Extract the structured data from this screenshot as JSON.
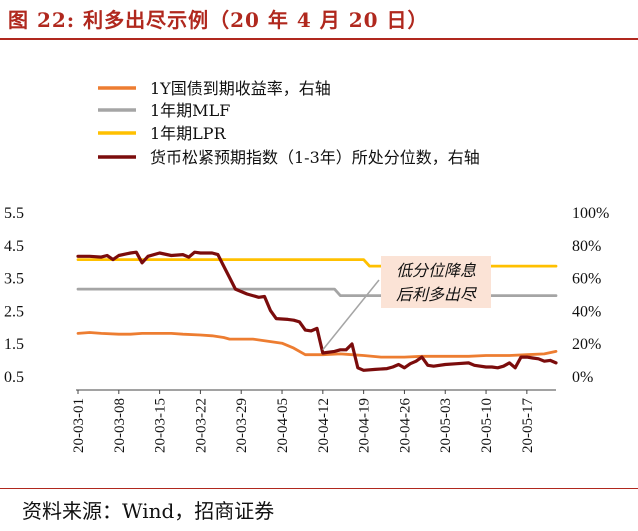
{
  "header": {
    "title": "图 22:  利多出尽示例（20 年 4 月 20 日）"
  },
  "footer": {
    "source": "资料来源：Wind，招商证券"
  },
  "chart_data": {
    "type": "line",
    "title": "",
    "ylim": [
      0.5,
      5.5
    ],
    "y_ticks": [
      "5.5",
      "4.5",
      "3.5",
      "2.5",
      "1.5",
      "0.5"
    ],
    "y2lim": [
      0,
      100
    ],
    "y2_ticks": [
      "100%",
      "80%",
      "60%",
      "40%",
      "20%",
      "0%"
    ],
    "x_ticks": [
      "20-03-01",
      "20-03-08",
      "20-03-15",
      "20-03-22",
      "20-03-29",
      "20-04-05",
      "20-04-12",
      "20-04-19",
      "20-04-26",
      "20-05-03",
      "20-05-10",
      "20-05-17"
    ],
    "x_range": [
      "2020-03-01",
      "2020-05-22"
    ],
    "legend_position": "top",
    "grid": false,
    "series": [
      {
        "name": "1Y国债到期收益率，右轴",
        "axis": "right",
        "color": "#ed7d31",
        "points": [
          [
            "2020-03-01",
            26
          ],
          [
            "2020-03-03",
            26.5
          ],
          [
            "2020-03-05",
            26
          ],
          [
            "2020-03-08",
            25.5
          ],
          [
            "2020-03-10",
            25.5
          ],
          [
            "2020-03-12",
            26
          ],
          [
            "2020-03-15",
            26
          ],
          [
            "2020-03-17",
            26
          ],
          [
            "2020-03-19",
            25.5
          ],
          [
            "2020-03-22",
            25
          ],
          [
            "2020-03-24",
            24.5
          ],
          [
            "2020-03-26",
            23.5
          ],
          [
            "2020-03-27",
            22.5
          ],
          [
            "2020-03-29",
            22.5
          ],
          [
            "2020-03-31",
            22.5
          ],
          [
            "2020-04-02",
            21.5
          ],
          [
            "2020-04-05",
            20
          ],
          [
            "2020-04-07",
            17
          ],
          [
            "2020-04-09",
            13
          ],
          [
            "2020-04-12",
            13
          ],
          [
            "2020-04-15",
            13.5
          ],
          [
            "2020-04-17",
            13
          ],
          [
            "2020-04-19",
            12.5
          ],
          [
            "2020-04-22",
            11.5
          ],
          [
            "2020-04-26",
            11.5
          ],
          [
            "2020-04-29",
            12
          ],
          [
            "2020-05-03",
            12
          ],
          [
            "2020-05-07",
            12
          ],
          [
            "2020-05-10",
            12.5
          ],
          [
            "2020-05-14",
            12.5
          ],
          [
            "2020-05-17",
            13
          ],
          [
            "2020-05-20",
            13.5
          ],
          [
            "2020-05-22",
            15
          ]
        ]
      },
      {
        "name": "1年期MLF",
        "axis": "left",
        "color": "#a5a5a5",
        "points": [
          [
            "2020-03-01",
            3.15
          ],
          [
            "2020-04-14",
            3.15
          ],
          [
            "2020-04-15",
            2.95
          ],
          [
            "2020-05-22",
            2.95
          ]
        ]
      },
      {
        "name": "1年期LPR",
        "axis": "left",
        "color": "#ffc000",
        "points": [
          [
            "2020-03-01",
            4.05
          ],
          [
            "2020-04-19",
            4.05
          ],
          [
            "2020-04-20",
            3.85
          ],
          [
            "2020-05-22",
            3.85
          ]
        ]
      },
      {
        "name": "货币松紧预期指数（1-3年）所处分位数，右轴",
        "axis": "right",
        "color": "#7b0c0c",
        "points": [
          [
            "2020-03-01",
            73
          ],
          [
            "2020-03-03",
            73
          ],
          [
            "2020-03-05",
            72.5
          ],
          [
            "2020-03-06",
            73.5
          ],
          [
            "2020-03-07",
            71
          ],
          [
            "2020-03-08",
            73.5
          ],
          [
            "2020-03-10",
            75
          ],
          [
            "2020-03-11",
            75.5
          ],
          [
            "2020-03-12",
            69
          ],
          [
            "2020-03-13",
            73
          ],
          [
            "2020-03-15",
            75
          ],
          [
            "2020-03-17",
            73.5
          ],
          [
            "2020-03-19",
            74
          ],
          [
            "2020-03-20",
            72.5
          ],
          [
            "2020-03-21",
            75.5
          ],
          [
            "2020-03-22",
            75
          ],
          [
            "2020-03-24",
            75
          ],
          [
            "2020-03-25",
            74
          ],
          [
            "2020-03-26",
            67
          ],
          [
            "2020-03-27",
            60
          ],
          [
            "2020-03-28",
            53
          ],
          [
            "2020-03-30",
            50
          ],
          [
            "2020-04-01",
            48
          ],
          [
            "2020-04-02",
            48.5
          ],
          [
            "2020-04-03",
            40
          ],
          [
            "2020-04-04",
            35
          ],
          [
            "2020-04-06",
            34.5
          ],
          [
            "2020-04-07",
            34
          ],
          [
            "2020-04-08",
            33
          ],
          [
            "2020-04-09",
            28
          ],
          [
            "2020-04-10",
            27.5
          ],
          [
            "2020-04-11",
            29
          ],
          [
            "2020-04-12",
            14
          ],
          [
            "2020-04-14",
            15
          ],
          [
            "2020-04-15",
            16
          ],
          [
            "2020-04-16",
            16
          ],
          [
            "2020-04-17",
            19.5
          ],
          [
            "2020-04-18",
            5
          ],
          [
            "2020-04-19",
            3.5
          ],
          [
            "2020-04-21",
            4
          ],
          [
            "2020-04-23",
            4.5
          ],
          [
            "2020-04-24",
            5.5
          ],
          [
            "2020-04-25",
            7
          ],
          [
            "2020-04-26",
            5
          ],
          [
            "2020-04-27",
            7.5
          ],
          [
            "2020-04-28",
            9
          ],
          [
            "2020-04-29",
            11.5
          ],
          [
            "2020-04-30",
            6.5
          ],
          [
            "2020-05-01",
            6
          ],
          [
            "2020-05-03",
            7
          ],
          [
            "2020-05-05",
            7.5
          ],
          [
            "2020-05-07",
            8
          ],
          [
            "2020-05-08",
            6.5
          ],
          [
            "2020-05-10",
            5.5
          ],
          [
            "2020-05-11",
            5.5
          ],
          [
            "2020-05-12",
            5
          ],
          [
            "2020-05-13",
            6
          ],
          [
            "2020-05-14",
            8
          ],
          [
            "2020-05-15",
            5
          ],
          [
            "2020-05-16",
            11.5
          ],
          [
            "2020-05-17",
            11.5
          ],
          [
            "2020-05-18",
            11
          ],
          [
            "2020-05-19",
            10.5
          ],
          [
            "2020-05-20",
            9
          ],
          [
            "2020-05-21",
            9.5
          ],
          [
            "2020-05-22",
            8
          ]
        ]
      }
    ],
    "annotations": [
      {
        "text_lines": [
          "低分位降息",
          "后利多出尽"
        ],
        "points_to": "2020-04-12"
      }
    ]
  }
}
